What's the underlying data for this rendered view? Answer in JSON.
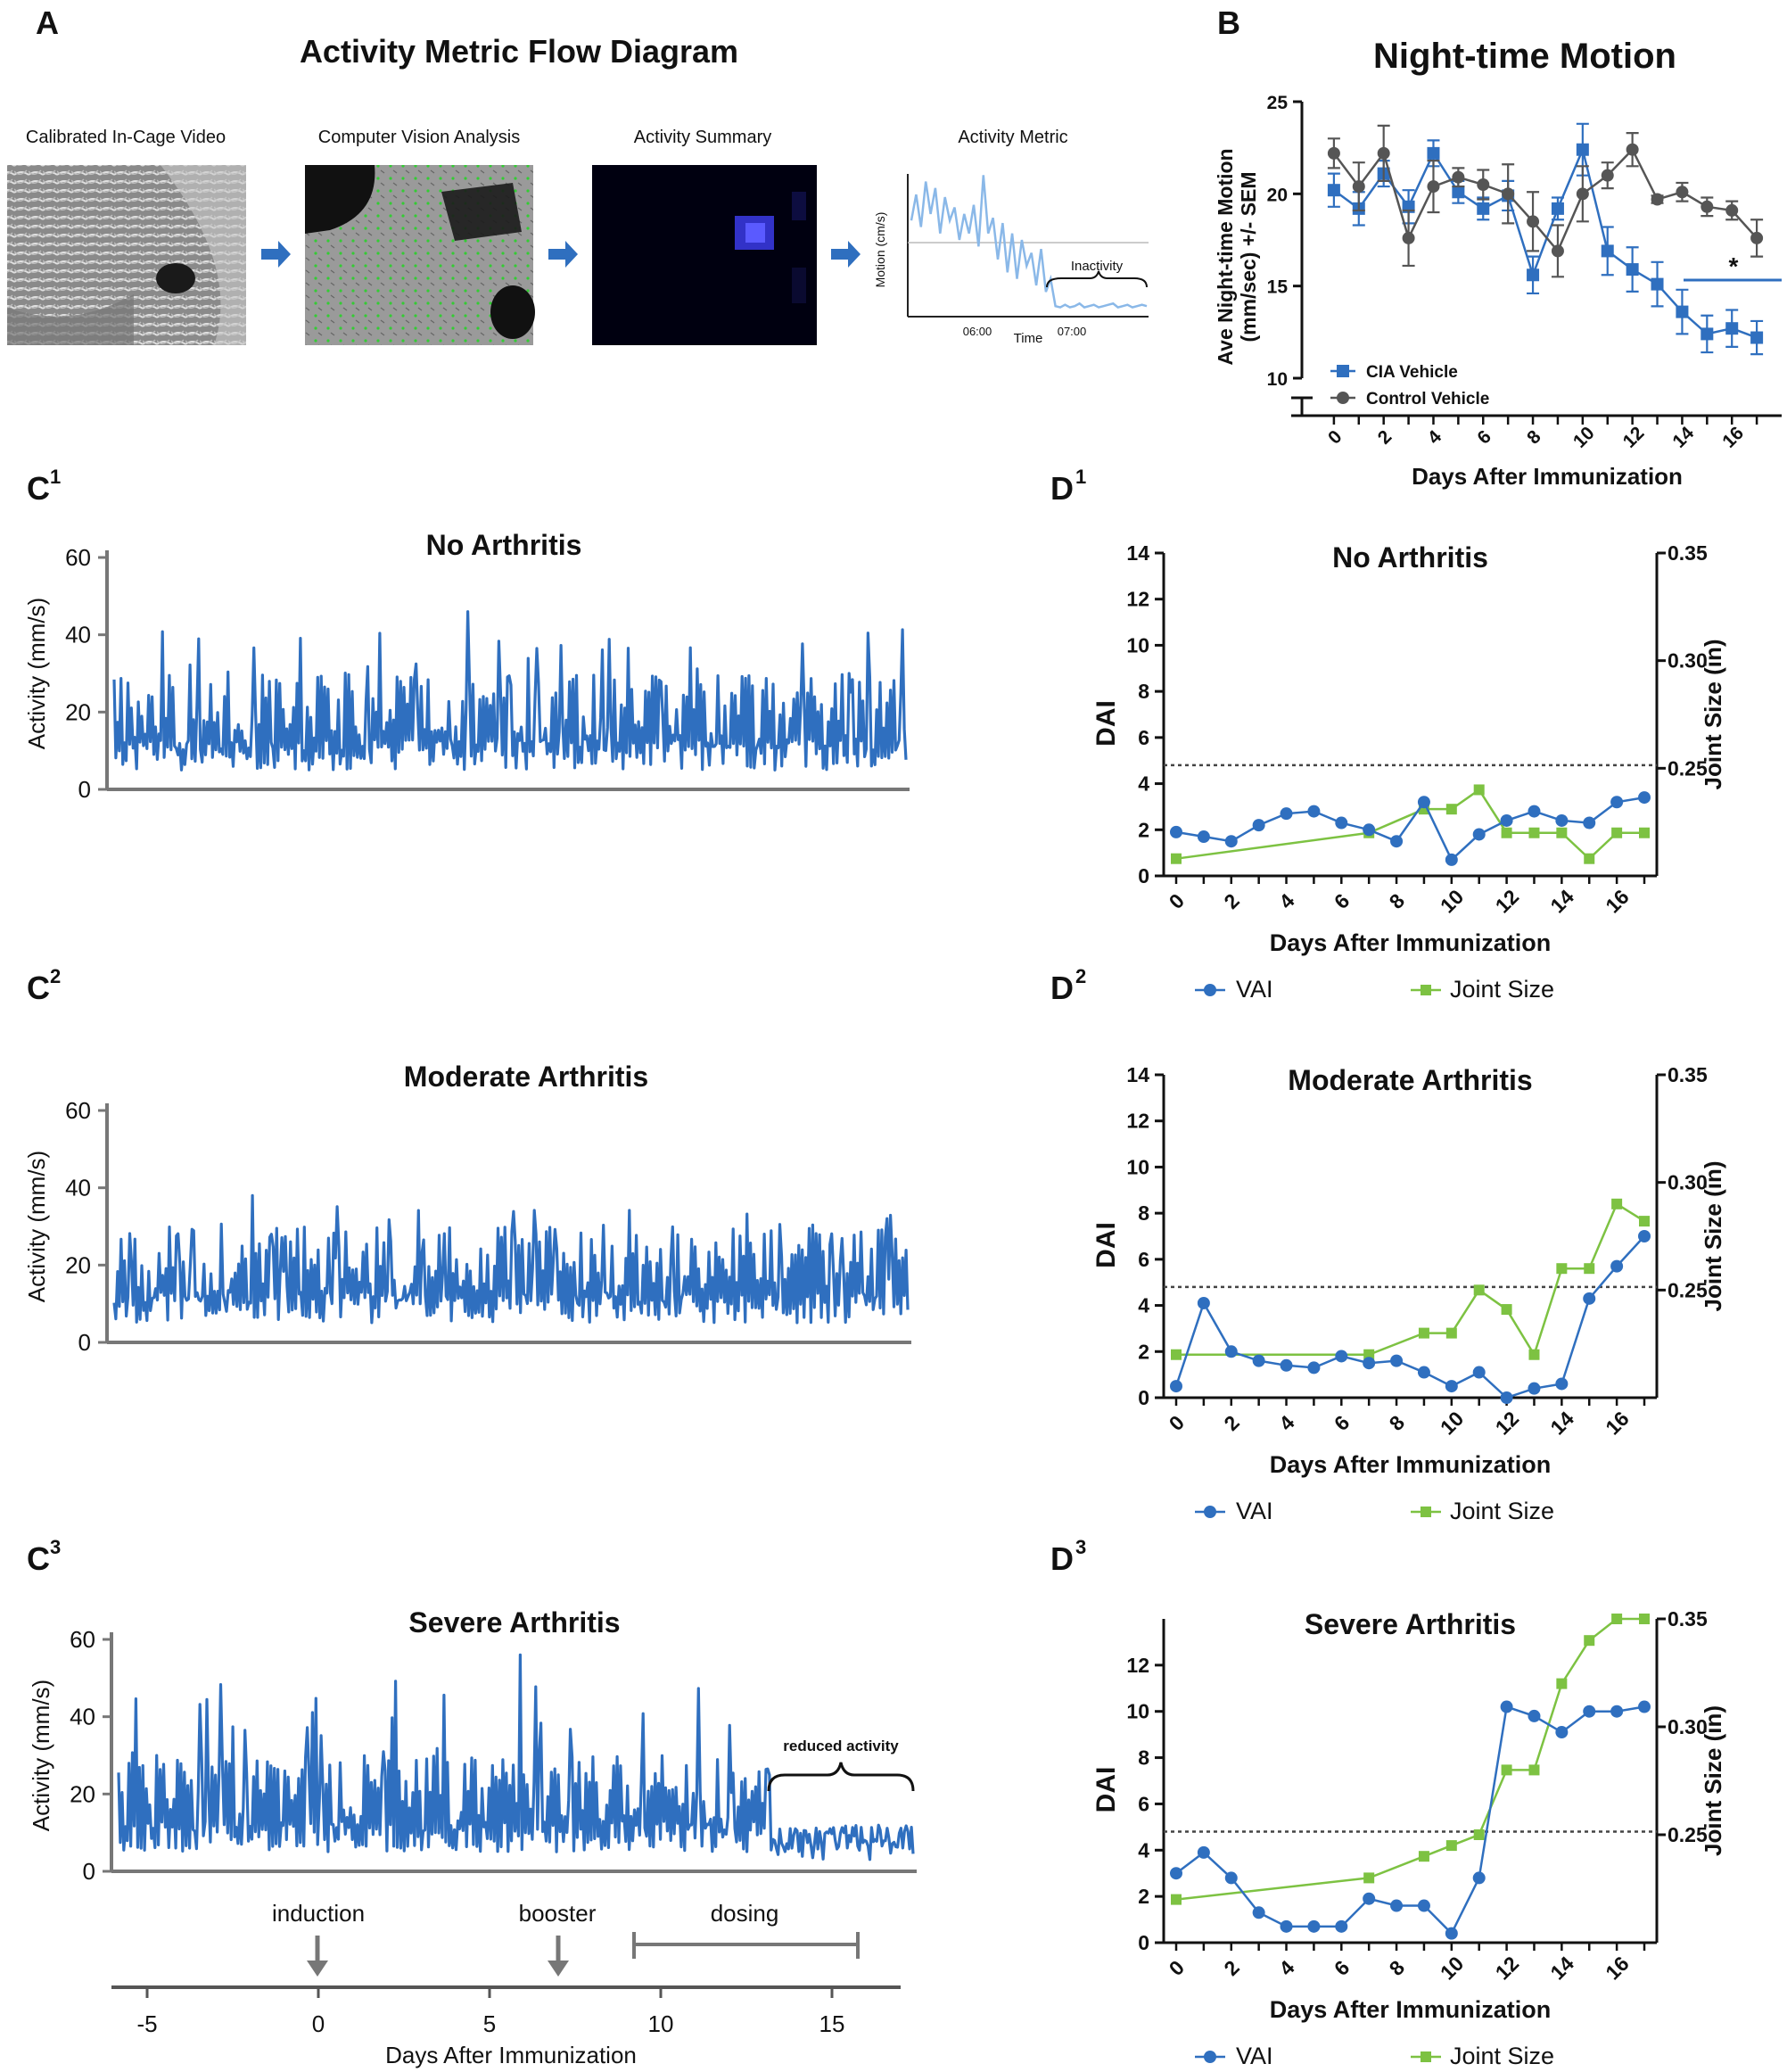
{
  "colors": {
    "blue": "#2f6fbf",
    "gray": "#555555",
    "green": "#7dc242",
    "axis": "#6b6b6b"
  },
  "panelA": {
    "letter": "A",
    "title": "Activity Metric Flow Diagram",
    "steps": [
      "Calibrated In-Cage Video",
      "Computer Vision Analysis",
      "Activity Summary",
      "Activity Metric"
    ],
    "mini": {
      "ylabel": "Motion (cm/s)",
      "xlabel": "Time",
      "tick1": "06:00",
      "tick2": "07:00",
      "annotation": "Inactivity"
    }
  },
  "panelB": {
    "letter": "B",
    "title": "Night-time Motion",
    "ylabel1": "Ave Night-time Motion",
    "ylabel2": "(mm/sec) +/- SEM",
    "xlabel": "Days After Immunization",
    "significance": "*",
    "yticks": [
      "10",
      "15",
      "20",
      "25"
    ],
    "xticks": [
      "0",
      "2",
      "4",
      "6",
      "8",
      "10",
      "12",
      "14",
      "16"
    ],
    "legend": [
      "CIA Vehicle",
      "Control Vehicle"
    ]
  },
  "panelC": {
    "letters": [
      "C",
      "C",
      "C"
    ],
    "superscripts": [
      "1",
      "2",
      "3"
    ],
    "titles": [
      "No Arthritis",
      "Moderate Arthritis",
      "Severe Arthritis"
    ],
    "ylabel": "Activity (mm/s)",
    "yticks": [
      "0",
      "20",
      "40",
      "60"
    ],
    "annotation": "reduced activity",
    "timeline": {
      "labels": [
        "induction",
        "booster",
        "dosing"
      ],
      "ticks": [
        "-5",
        "0",
        "5",
        "10",
        "15"
      ],
      "xlabel": "Days After Immunization"
    }
  },
  "panelD": {
    "letters": [
      "D",
      "D",
      "D"
    ],
    "superscripts": [
      "1",
      "2",
      "3"
    ],
    "titles": [
      "No Arthritis",
      "Moderate Arthritis",
      "Severe Arthritis"
    ],
    "ylabel": "DAI",
    "y2label": "Joint Size (in)",
    "xlabel": "Days After Immunization",
    "yticks": [
      "0",
      "2",
      "4",
      "6",
      "8",
      "10",
      "12",
      "14"
    ],
    "yticks3": [
      "0",
      "2",
      "4",
      "6",
      "8",
      "10",
      "12"
    ],
    "y2ticks": [
      "0.25",
      "0.30",
      "0.35"
    ],
    "xticks": [
      "0",
      "2",
      "4",
      "6",
      "8",
      "10",
      "12",
      "14",
      "16"
    ],
    "legend": [
      "VAI",
      "Joint Size"
    ]
  },
  "chart_data": [
    {
      "id": "B",
      "type": "line",
      "title": "Night-time Motion",
      "xlabel": "Days After Immunization",
      "ylabel": "Ave Night-time Motion (mm/sec) +/- SEM",
      "xlim": [
        -1,
        18
      ],
      "ylim": [
        10,
        25
      ],
      "x": [
        0,
        1,
        2,
        3,
        4,
        5,
        6,
        7,
        8,
        9,
        10,
        11,
        12,
        13,
        14,
        15,
        16,
        17
      ],
      "series": [
        {
          "name": "CIA Vehicle",
          "values": [
            20.2,
            19.2,
            21.1,
            19.3,
            22.2,
            20.1,
            19.2,
            19.9,
            15.6,
            19.2,
            22.4,
            16.9,
            15.9,
            15.1,
            13.6,
            12.4,
            12.7,
            12.2
          ],
          "sem": [
            0.9,
            0.9,
            0.7,
            0.9,
            0.7,
            0.6,
            0.6,
            0.8,
            1.0,
            0.6,
            1.4,
            1.3,
            1.2,
            1.2,
            1.2,
            1.0,
            1.0,
            0.9
          ]
        },
        {
          "name": "Control Vehicle",
          "values": [
            22.2,
            20.4,
            22.2,
            17.6,
            20.4,
            20.9,
            20.5,
            20.0,
            18.5,
            16.9,
            20.0,
            21.0,
            22.4,
            19.7,
            20.1,
            19.3,
            19.1,
            17.6
          ],
          "sem": [
            0.8,
            1.3,
            1.5,
            1.5,
            1.4,
            0.5,
            0.8,
            1.6,
            1.6,
            1.4,
            1.5,
            0.7,
            0.9,
            0.2,
            0.5,
            0.5,
            0.5,
            1.0
          ]
        }
      ]
    },
    {
      "id": "A-mini",
      "type": "line",
      "title": "Activity Metric",
      "xlabel": "Time",
      "ylabel": "Motion (cm/s)",
      "series": [
        {
          "name": "motion",
          "values": [
            7,
            9,
            6.5,
            10,
            7.5,
            9.5,
            6,
            8.8,
            7,
            8,
            5.5,
            7.5,
            6,
            8.2,
            5,
            10.5,
            6,
            7.2,
            4,
            6.8,
            3,
            6,
            2.5,
            5.5,
            3.5,
            4.5,
            2,
            4.8,
            1.5,
            2.5,
            0.4,
            0.3,
            0.5,
            0.3,
            0.4,
            0.6,
            0.3,
            0.4,
            0.5,
            0.3,
            0.4,
            0.5,
            0.6,
            0.3,
            0.4,
            0.5,
            0.3,
            0.4,
            0.5,
            0.4
          ]
        }
      ],
      "reference_line": 6
    },
    {
      "id": "C1",
      "type": "line",
      "title": "No Arthritis",
      "ylabel": "Activity (mm/s)",
      "ylim": [
        0,
        60
      ],
      "pattern": "oscillating 5-30 with peaks to ~46",
      "peak": 46
    },
    {
      "id": "C2",
      "type": "line",
      "title": "Moderate Arthritis",
      "ylabel": "Activity (mm/s)",
      "ylim": [
        0,
        60
      ],
      "pattern": "oscillating 5-30 with peaks to ~38",
      "peak": 38
    },
    {
      "id": "C3",
      "type": "line",
      "title": "Severe Arthritis",
      "ylabel": "Activity (mm/s)",
      "ylim": [
        0,
        60
      ],
      "pattern": "oscillating 5-30, reduced to ~3-12 at end",
      "peak": 56
    },
    {
      "id": "D1",
      "type": "line",
      "title": "No Arthritis",
      "xlabel": "Days After Immunization",
      "ylabel": "DAI",
      "y2label": "Joint Size (in)",
      "ylim": [
        0,
        14
      ],
      "y2lim": [
        0.2,
        0.35
      ],
      "threshold": 4.8,
      "series": [
        {
          "name": "VAI",
          "axis": "left",
          "x": [
            0,
            1,
            2,
            3,
            4,
            5,
            6,
            7,
            8,
            9,
            10,
            11,
            12,
            13,
            14,
            15,
            16,
            17
          ],
          "values": [
            1.9,
            1.7,
            1.5,
            2.2,
            2.7,
            2.8,
            2.3,
            2.0,
            1.5,
            3.2,
            0.7,
            1.8,
            2.4,
            2.8,
            2.4,
            2.3,
            3.2,
            3.4
          ]
        },
        {
          "name": "Joint Size",
          "axis": "right",
          "x": [
            0,
            7,
            9,
            10,
            11,
            12,
            13,
            14,
            15,
            16,
            17
          ],
          "values": [
            0.208,
            0.22,
            0.231,
            0.231,
            0.24,
            0.22,
            0.22,
            0.22,
            0.208,
            0.22,
            0.22
          ]
        }
      ]
    },
    {
      "id": "D2",
      "type": "line",
      "title": "Moderate Arthritis",
      "xlabel": "Days After Immunization",
      "ylabel": "DAI",
      "y2label": "Joint Size (in)",
      "ylim": [
        0,
        14
      ],
      "y2lim": [
        0.2,
        0.35
      ],
      "threshold": 4.8,
      "series": [
        {
          "name": "VAI",
          "axis": "left",
          "x": [
            0,
            1,
            2,
            3,
            4,
            5,
            6,
            7,
            8,
            9,
            10,
            11,
            12,
            13,
            14,
            15,
            16,
            17
          ],
          "values": [
            0.5,
            4.1,
            2.0,
            1.6,
            1.4,
            1.3,
            1.8,
            1.5,
            1.6,
            1.1,
            0.5,
            1.1,
            0.0,
            0.4,
            0.6,
            4.3,
            5.7,
            7.0
          ]
        },
        {
          "name": "Joint Size",
          "axis": "right",
          "x": [
            0,
            7,
            9,
            10,
            11,
            12,
            13,
            14,
            15,
            16,
            17
          ],
          "values": [
            0.22,
            0.22,
            0.23,
            0.23,
            0.25,
            0.241,
            0.22,
            0.26,
            0.26,
            0.29,
            0.282
          ]
        }
      ]
    },
    {
      "id": "D3",
      "type": "line",
      "title": "Severe Arthritis",
      "xlabel": "Days After Immunization",
      "ylabel": "DAI",
      "y2label": "Joint Size (in)",
      "ylim": [
        0,
        14
      ],
      "y2lim": [
        0.2,
        0.35
      ],
      "threshold": 4.8,
      "series": [
        {
          "name": "VAI",
          "axis": "left",
          "x": [
            0,
            1,
            2,
            3,
            4,
            5,
            6,
            7,
            8,
            9,
            10,
            11,
            12,
            13,
            14,
            15,
            16,
            17
          ],
          "values": [
            3.0,
            3.9,
            2.8,
            1.3,
            0.7,
            0.7,
            0.7,
            1.9,
            1.6,
            1.6,
            0.4,
            2.8,
            10.2,
            9.8,
            9.1,
            10.0,
            10.0,
            10.2
          ]
        },
        {
          "name": "Joint Size",
          "axis": "right",
          "x": [
            0,
            7,
            9,
            10,
            11,
            12,
            13,
            14,
            15,
            16,
            17
          ],
          "values": [
            0.22,
            0.23,
            0.24,
            0.245,
            0.25,
            0.28,
            0.28,
            0.32,
            0.34,
            0.35,
            0.35
          ]
        }
      ]
    }
  ]
}
